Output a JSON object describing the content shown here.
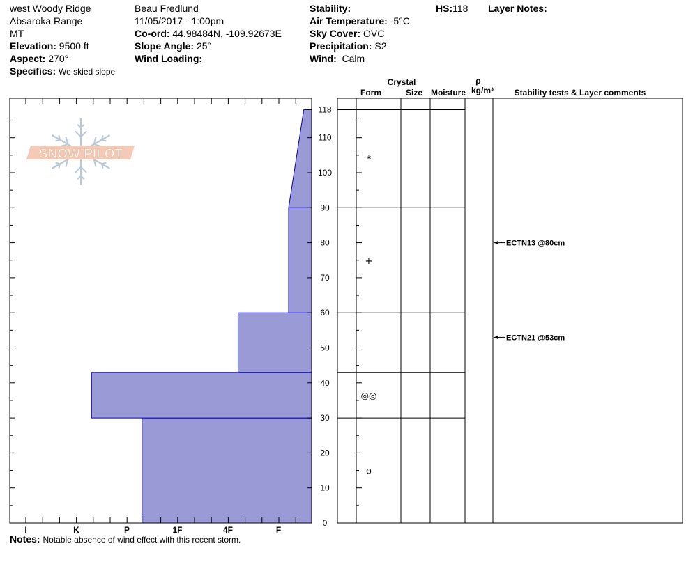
{
  "header": {
    "location": "west Woody Ridge",
    "range": "Absaroka Range",
    "state": "MT",
    "elevation_label": "Elevation:",
    "elevation_value": "9500 ft",
    "aspect_label": "Aspect:",
    "aspect_value": "270°",
    "specifics_label": "Specifics:",
    "specifics_value": "We skied slope",
    "observer": "Beau  Fredlund",
    "datetime": "11/05/2017 - 1:00pm",
    "coord_label": "Co-ord:",
    "coord_value": "44.98484N, -109.92673E",
    "slope_label": "Slope Angle:",
    "slope_value": "25°",
    "wind_loading_label": "Wind Loading:",
    "wind_loading_value": "",
    "stability_label": "Stability:",
    "stability_value": "",
    "air_temp_label": "Air Temperature:",
    "air_temp_value": "-5°C",
    "sky_label": "Sky Cover:",
    "sky_value": "OVC",
    "precip_label": "Precipitation:",
    "precip_value": "S2",
    "wind_label": "Wind:",
    "wind_value": "Calm",
    "hs_label": "HS:",
    "hs_value": "118",
    "layer_notes_label": "Layer Notes:"
  },
  "columns": {
    "crystal": "Crystal",
    "form": "Form",
    "size": "Size",
    "moisture": "Moisture",
    "rho": "ρ",
    "density_unit": "kg/m³",
    "comments": "Stability tests & Layer comments"
  },
  "notes": {
    "label": "Notes:",
    "text": "Notable absence of wind effect with this recent storm."
  },
  "logo": {
    "text": "SNOW PILOT",
    "color": "#f4c9b6"
  },
  "colors": {
    "profile_fill": "#9a9ad6",
    "profile_stroke": "#0000c0",
    "logo_flake": "#b8c8d8"
  },
  "chart_data": {
    "type": "area",
    "y_unit": "cm",
    "ylim": [
      0,
      118
    ],
    "y_ticks": [
      "0",
      "10",
      "20",
      "30",
      "40",
      "50",
      "60",
      "70",
      "80",
      "90",
      "100",
      "110",
      "118"
    ],
    "hardness_scale": [
      "I",
      "K",
      "P",
      "1F",
      "4F",
      "F"
    ],
    "layers": [
      {
        "bottom": 0,
        "top": 30,
        "hardness_bottom": 2.3,
        "hardness_top": 2.3,
        "crystal_symbol": "ɵ"
      },
      {
        "bottom": 30,
        "top": 43,
        "hardness_bottom": 1.3,
        "hardness_top": 1.3,
        "crystal_symbol": "◎◎"
      },
      {
        "bottom": 43,
        "top": 60,
        "hardness_bottom": 4.2,
        "hardness_top": 4.2,
        "crystal_symbol": ""
      },
      {
        "bottom": 60,
        "top": 90,
        "hardness_bottom": 5.2,
        "hardness_top": 5.2,
        "crystal_symbol": "+"
      },
      {
        "bottom": 90,
        "top": 118,
        "hardness_bottom": 5.2,
        "hardness_top": 5.5,
        "crystal_symbol": "*"
      }
    ],
    "stability_tests": [
      {
        "depth": 80,
        "label": "ECTN13 @80cm"
      },
      {
        "depth": 53,
        "label": "ECTN21 @53cm"
      }
    ]
  }
}
